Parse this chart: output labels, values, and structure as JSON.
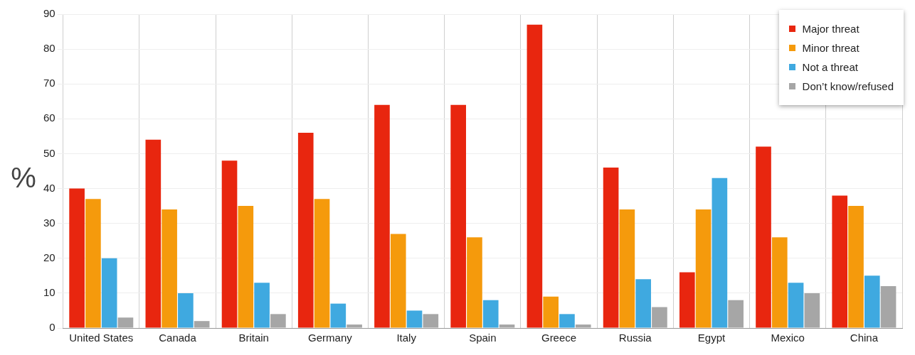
{
  "chart_data": {
    "type": "bar",
    "ylabel": "%",
    "categories": [
      "United States",
      "Canada",
      "Britain",
      "Germany",
      "Italy",
      "Spain",
      "Greece",
      "Russia",
      "Egypt",
      "Mexico",
      "China"
    ],
    "series": [
      {
        "name": "Major threat",
        "color": "#e8260f",
        "values": [
          40,
          54,
          48,
          56,
          64,
          64,
          87,
          46,
          16,
          52,
          38
        ]
      },
      {
        "name": "Minor threat",
        "color": "#f59a0c",
        "values": [
          37,
          34,
          35,
          37,
          27,
          26,
          9,
          34,
          34,
          26,
          35
        ]
      },
      {
        "name": "Not a threat",
        "color": "#3fa9e0",
        "values": [
          20,
          10,
          13,
          7,
          5,
          8,
          4,
          14,
          43,
          13,
          15
        ]
      },
      {
        "name": "Don’t know/refused",
        "color": "#a6a6a6",
        "values": [
          3,
          2,
          4,
          1,
          4,
          1,
          1,
          6,
          8,
          10,
          12
        ]
      }
    ],
    "ylim": [
      0,
      90
    ],
    "yticks": [
      0,
      10,
      20,
      30,
      40,
      50,
      60,
      70,
      80,
      90
    ],
    "grid": true,
    "legend": "top right"
  }
}
